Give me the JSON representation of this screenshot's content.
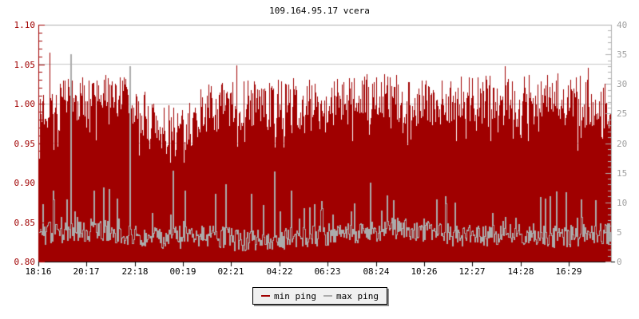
{
  "title": "109.164.95.17 vcera",
  "chart_data": {
    "type": "mixed",
    "title": "109.164.95.17 vcera",
    "x_tick_labels": [
      "18:16",
      "20:17",
      "22:18",
      "00:19",
      "02:21",
      "04:22",
      "06:23",
      "08:24",
      "10:26",
      "12:27",
      "14:28",
      "16:29"
    ],
    "left_axis": {
      "label_values": [
        "1.10",
        "1.05",
        "1.00",
        "0.95",
        "0.90",
        "0.85",
        "0.80"
      ],
      "min": 0.8,
      "max": 1.1,
      "major_step": 0.05,
      "minor_step": 0.01,
      "color": "#a00000"
    },
    "right_axis": {
      "label_values": [
        "40",
        "35",
        "30",
        "25",
        "20",
        "15",
        "10",
        "5",
        "0"
      ],
      "min": 0,
      "max": 40,
      "major_step": 5,
      "minor_step": 1,
      "color": "#a0a0a0"
    },
    "grid": {
      "horizontal": true,
      "vertical": false,
      "color": "#c8c8c8",
      "frame_color": "#b0b0b0",
      "bottom_axis_color": "#000000"
    },
    "seed": 7,
    "series": [
      {
        "name": "min ping",
        "type": "area",
        "axis": "left",
        "color": "#a00000",
        "anchors_t": [
          0,
          0.03,
          0.07,
          0.1,
          0.13,
          0.16,
          0.19,
          0.22,
          0.25,
          0.28,
          0.32,
          0.36,
          0.4,
          0.44,
          0.48,
          0.52,
          0.56,
          0.6,
          0.64,
          0.68,
          0.72,
          0.76,
          0.8,
          0.84,
          0.88,
          0.92,
          0.96,
          1.0
        ],
        "anchors_v": [
          0.985,
          0.99,
          0.995,
          1.0,
          1.002,
          0.995,
          0.975,
          0.957,
          0.96,
          0.982,
          0.99,
          0.993,
          0.99,
          0.993,
          0.99,
          0.992,
          0.996,
          1.0,
          0.996,
          0.995,
          0.998,
          1.0,
          0.996,
          0.995,
          1.0,
          0.997,
          0.995,
          0.99
        ],
        "noise": [
          -0.025,
          0.04
        ],
        "dip_prob": 0.28,
        "dip_range": [
          0,
          0.032
        ],
        "value_floor": 0.925,
        "value_cap": 1.042,
        "spikes": [
          {
            "t": 0.018,
            "v": 1.065
          },
          {
            "t": 0.346,
            "v": 1.048
          },
          {
            "t": 0.816,
            "v": 1.047
          },
          {
            "t": 0.961,
            "v": 1.045
          }
        ]
      },
      {
        "name": "max ping",
        "type": "line",
        "axis": "right",
        "color": "#ababab",
        "anchors_t": [
          0,
          0.05,
          0.1,
          0.15,
          0.2,
          0.25,
          0.3,
          0.35,
          0.4,
          0.45,
          0.5,
          0.55,
          0.6,
          0.63,
          0.66,
          0.7,
          0.75,
          0.8,
          0.85,
          0.9,
          0.95,
          1.0
        ],
        "anchors_v": [
          4.5,
          4.8,
          5.2,
          4.5,
          3.8,
          4.0,
          4.2,
          3.5,
          3.6,
          4.0,
          4.3,
          4.8,
          5.2,
          5.6,
          4.9,
          4.5,
          4.3,
          4.2,
          4.5,
          4.0,
          4.3,
          4.5
        ],
        "noise": [
          -1.7,
          2.1
        ],
        "spike_prob": 0.055,
        "spike_range": [
          2,
          6.5
        ],
        "value_floor": 0.6,
        "spikes": [
          {
            "t": 0.055,
            "v": 35
          },
          {
            "t": 0.095,
            "v": 12
          },
          {
            "t": 0.112,
            "v": 12.5
          },
          {
            "t": 0.158,
            "v": 33
          },
          {
            "t": 0.233,
            "v": 15.3
          },
          {
            "t": 0.254,
            "v": 12
          },
          {
            "t": 0.307,
            "v": 11.4
          },
          {
            "t": 0.326,
            "v": 13
          },
          {
            "t": 0.371,
            "v": 11.5
          },
          {
            "t": 0.411,
            "v": 15.2
          },
          {
            "t": 0.44,
            "v": 12
          },
          {
            "t": 0.579,
            "v": 13.3
          },
          {
            "t": 0.695,
            "v": 10.5
          },
          {
            "t": 0.905,
            "v": 11.8
          },
          {
            "t": 0.922,
            "v": 11.7
          }
        ]
      }
    ]
  },
  "legend": {
    "items": [
      {
        "label": "min ping",
        "color": "#a00000"
      },
      {
        "label": "max ping",
        "color": "#ababab"
      }
    ]
  }
}
